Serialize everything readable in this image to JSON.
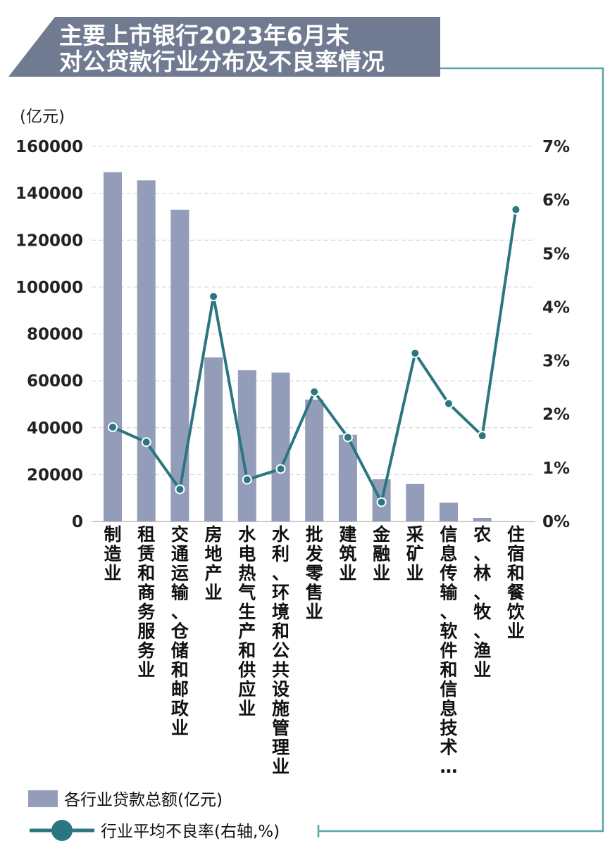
{
  "colors": {
    "bar": "#939db9",
    "line": "#2b7680",
    "title_bg": "#707b92",
    "frame": "#5aa3ab",
    "grid": "#cfcfcf"
  },
  "chart_data": {
    "type": "bar",
    "title_line1": "主要上市银行2023年6月末",
    "title_line2": "对公贷款行业分布及不良率情况",
    "y_unit": "(亿元)",
    "ylim": [
      0,
      160000
    ],
    "y_ticks": [
      "160000",
      "140000",
      "120000",
      "100000",
      "80000",
      "60000",
      "40000",
      "20000",
      "0"
    ],
    "y2lim": [
      0,
      7
    ],
    "y2_ticks": [
      "7%",
      "6%",
      "5%",
      "4%",
      "3%",
      "2%",
      "1%",
      "0%"
    ],
    "categories": [
      "制造业",
      "租赁和商务服务业",
      "交通运输、仓储和邮政业",
      "房地产业",
      "水电热气生产和供应业",
      "水利、环境和公共设施管理业",
      "批发零售业",
      "建筑业",
      "金融业",
      "采矿业",
      "信息传输、软件和信息技术…",
      "农、林、牧、渔业",
      "住宿和餐饮业"
    ],
    "series": [
      {
        "name": "各行业贷款总额(亿元)",
        "type": "bar",
        "axis": "left",
        "values": [
          149000,
          145500,
          133000,
          70000,
          64500,
          63500,
          52000,
          37000,
          18000,
          16000,
          8000,
          1500,
          0
        ]
      },
      {
        "name": "行业平均不良率(右轴,%)",
        "type": "line",
        "axis": "right",
        "values": [
          1.76,
          1.48,
          0.6,
          4.2,
          0.78,
          0.98,
          2.42,
          1.57,
          0.36,
          3.14,
          2.2,
          1.6,
          5.82
        ]
      }
    ],
    "legend": [
      "各行业贷款总额(亿元)",
      "行业平均不良率(右轴,%)"
    ]
  }
}
